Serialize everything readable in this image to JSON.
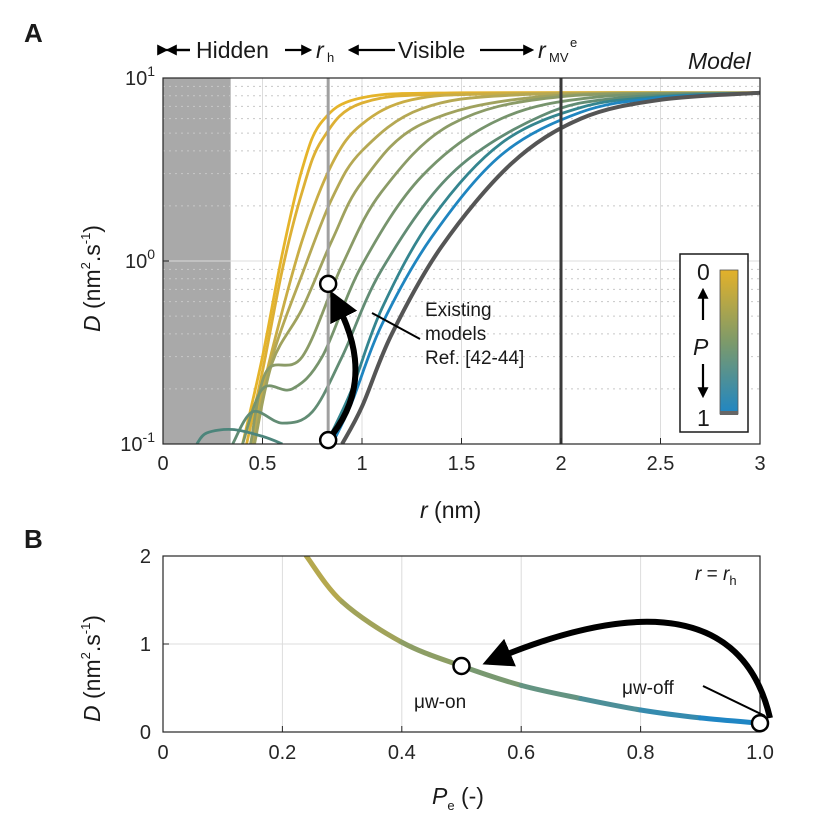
{
  "panel_a": {
    "label": "A",
    "model_label": "Model",
    "hidden_label": "Hidden",
    "visible_label": "Visible",
    "rh_label": "r",
    "rh_sub": "h",
    "rmv_label": "r",
    "rmv_sub": "MV",
    "rmv_sup": "e",
    "ylabel": {
      "main": "D",
      "unit1": " (nm",
      "sup2": "2",
      "unit2": ".s",
      "supm1": "-1",
      "unit3": ")"
    },
    "xlabel": {
      "main": "r",
      "unit": " (nm)"
    },
    "annotation": [
      "Existing",
      "models",
      "Ref. [42-44]"
    ],
    "colorbar": {
      "top": "0",
      "bottom": "1",
      "var": "P",
      "colors": [
        "#e3b12a",
        "#7d9a6a",
        "#1f86c4"
      ]
    },
    "yticks": [
      {
        "base": "10",
        "exp": "-1",
        "value": 0.1
      },
      {
        "base": "10",
        "exp": "0",
        "value": 1
      },
      {
        "base": "10",
        "exp": "1",
        "value": 10
      }
    ],
    "xticks": [
      "0",
      "0.5",
      "1",
      "1.5",
      "2",
      "2.5",
      "3"
    ]
  },
  "panel_b": {
    "label": "B",
    "rr_label": {
      "a": "r",
      "eq": " = ",
      "b": "r",
      "sub": "h"
    },
    "ylabel": {
      "main": "D",
      "unit1": " (nm",
      "sup2": "2",
      "unit2": ".s",
      "supm1": "-1",
      "unit3": ")"
    },
    "xlabel": {
      "main": "P",
      "sub": "e",
      "unit": " (-)"
    },
    "label_on": "μw-on",
    "label_off": "μw-off",
    "xticks": [
      "0",
      "0.2",
      "0.4",
      "0.6",
      "0.8",
      "1.0"
    ],
    "yticks": [
      "0",
      "1",
      "2"
    ]
  },
  "chart_data": [
    {
      "type": "line",
      "panel": "A",
      "xlabel": "r (nm)",
      "ylabel": "D (nm2.s-1)",
      "xlim": [
        0,
        3
      ],
      "ylim": [
        0.1,
        10
      ],
      "yscale": "log",
      "grid": true,
      "hidden_region": [
        0,
        0.34
      ],
      "r_h": 0.83,
      "r_MV_e": 2.0,
      "series_colors": [
        "#e5b42a",
        "#ddb034",
        "#c9ad45",
        "#b5a854",
        "#a0a25e",
        "#8b9b67",
        "#77946d",
        "#628c74",
        "#4c857b",
        "#34858f",
        "#1f85c0",
        "#555555"
      ],
      "series": [
        {
          "P": 0.0,
          "points": [
            [
              0.4,
              0.1
            ],
            [
              0.5,
              0.3
            ],
            [
              0.6,
              1.1
            ],
            [
              0.7,
              3.2
            ],
            [
              0.8,
              5.8
            ],
            [
              1.0,
              7.8
            ],
            [
              1.5,
              8.3
            ],
            [
              3.0,
              8.3
            ]
          ]
        },
        {
          "P": 0.1,
          "points": [
            [
              0.42,
              0.1
            ],
            [
              0.5,
              0.25
            ],
            [
              0.6,
              0.9
            ],
            [
              0.7,
              2.4
            ],
            [
              0.8,
              4.6
            ],
            [
              1.0,
              7.3
            ],
            [
              1.5,
              8.2
            ],
            [
              3.0,
              8.3
            ]
          ]
        },
        {
          "P": 0.2,
          "points": [
            [
              0.44,
              0.1
            ],
            [
              0.55,
              0.33
            ],
            [
              0.7,
              1.3
            ],
            [
              0.85,
              3.4
            ],
            [
              1.0,
              5.6
            ],
            [
              1.25,
              7.6
            ],
            [
              1.7,
              8.2
            ],
            [
              3.0,
              8.3
            ]
          ]
        },
        {
          "P": 0.3,
          "points": [
            [
              0.45,
              0.1
            ],
            [
              0.55,
              0.3
            ],
            [
              0.7,
              0.85
            ],
            [
              0.85,
              2.2
            ],
            [
              1.0,
              4.0
            ],
            [
              1.3,
              6.8
            ],
            [
              1.8,
              8.1
            ],
            [
              3.0,
              8.3
            ]
          ]
        },
        {
          "P": 0.4,
          "points": [
            [
              0.46,
              0.1
            ],
            [
              0.55,
              0.28
            ],
            [
              0.7,
              0.55
            ],
            [
              0.85,
              1.3
            ],
            [
              1.0,
              2.7
            ],
            [
              1.3,
              5.6
            ],
            [
              1.9,
              7.9
            ],
            [
              3.0,
              8.3
            ]
          ]
        },
        {
          "P": 0.5,
          "points": [
            [
              0.44,
              0.1
            ],
            [
              0.52,
              0.25
            ],
            [
              0.7,
              0.3
            ],
            [
              0.9,
              0.95
            ],
            [
              1.1,
              2.4
            ],
            [
              1.45,
              5.6
            ],
            [
              2.0,
              7.9
            ],
            [
              3.0,
              8.3
            ]
          ]
        },
        {
          "P": 0.6,
          "points": [
            [
              0.4,
              0.1
            ],
            [
              0.5,
              0.2
            ],
            [
              0.65,
              0.2
            ],
            [
              0.8,
              0.3
            ],
            [
              1.0,
              0.95
            ],
            [
              1.3,
              2.9
            ],
            [
              1.7,
              6.0
            ],
            [
              2.2,
              7.9
            ],
            [
              3.0,
              8.3
            ]
          ]
        },
        {
          "P": 0.7,
          "points": [
            [
              0.35,
              0.1
            ],
            [
              0.45,
              0.15
            ],
            [
              0.6,
              0.13
            ],
            [
              0.75,
              0.15
            ],
            [
              0.9,
              0.3
            ],
            [
              1.1,
              0.9
            ],
            [
              1.45,
              3.0
            ],
            [
              1.9,
              6.2
            ],
            [
              2.3,
              7.8
            ],
            [
              3.0,
              8.3
            ]
          ]
        },
        {
          "P": 0.8,
          "points": [
            [
              0.17,
              0.1
            ],
            [
              0.22,
              0.115
            ],
            [
              0.35,
              0.12
            ],
            [
              0.5,
              0.11
            ],
            [
              0.6,
              0.1
            ]
          ]
        },
        {
          "P": 0.85,
          "points": [
            [
              0.82,
              0.1
            ],
            [
              0.95,
              0.2
            ],
            [
              1.1,
              0.55
            ],
            [
              1.35,
              1.7
            ],
            [
              1.7,
              4.4
            ],
            [
              2.1,
              6.9
            ],
            [
              2.5,
              7.9
            ],
            [
              3.0,
              8.3
            ]
          ]
        },
        {
          "P": 0.9,
          "points": [
            [
              0.85,
              0.1
            ],
            [
              0.95,
              0.17
            ],
            [
              1.1,
              0.45
            ],
            [
              1.35,
              1.35
            ],
            [
              1.7,
              3.8
            ],
            [
              2.1,
              6.5
            ],
            [
              2.5,
              7.8
            ],
            [
              3.0,
              8.3
            ]
          ]
        },
        {
          "P": 1.0,
          "points": [
            [
              0.9,
              0.1
            ],
            [
              1.0,
              0.16
            ],
            [
              1.15,
              0.4
            ],
            [
              1.4,
              1.2
            ],
            [
              1.75,
              3.4
            ],
            [
              2.1,
              6.0
            ],
            [
              2.5,
              7.6
            ],
            [
              3.0,
              8.3
            ]
          ]
        }
      ],
      "markers": [
        {
          "x": 0.83,
          "y": 0.75
        },
        {
          "x": 0.83,
          "y": 0.105
        }
      ]
    },
    {
      "type": "line",
      "panel": "B",
      "xlabel": "Pe (-)",
      "ylabel": "D (nm2.s-1)",
      "xlim": [
        0,
        1
      ],
      "ylim": [
        0,
        2
      ],
      "grid": true,
      "x": [
        0.24,
        0.3,
        0.4,
        0.5,
        0.6,
        0.7,
        0.8,
        0.9,
        1.0
      ],
      "y": [
        2.0,
        1.48,
        1.02,
        0.75,
        0.53,
        0.38,
        0.25,
        0.16,
        0.1
      ],
      "markers": [
        {
          "x": 0.5,
          "y": 0.75,
          "label": "μw-on"
        },
        {
          "x": 1.0,
          "y": 0.1,
          "label": "μw-off"
        }
      ]
    }
  ]
}
